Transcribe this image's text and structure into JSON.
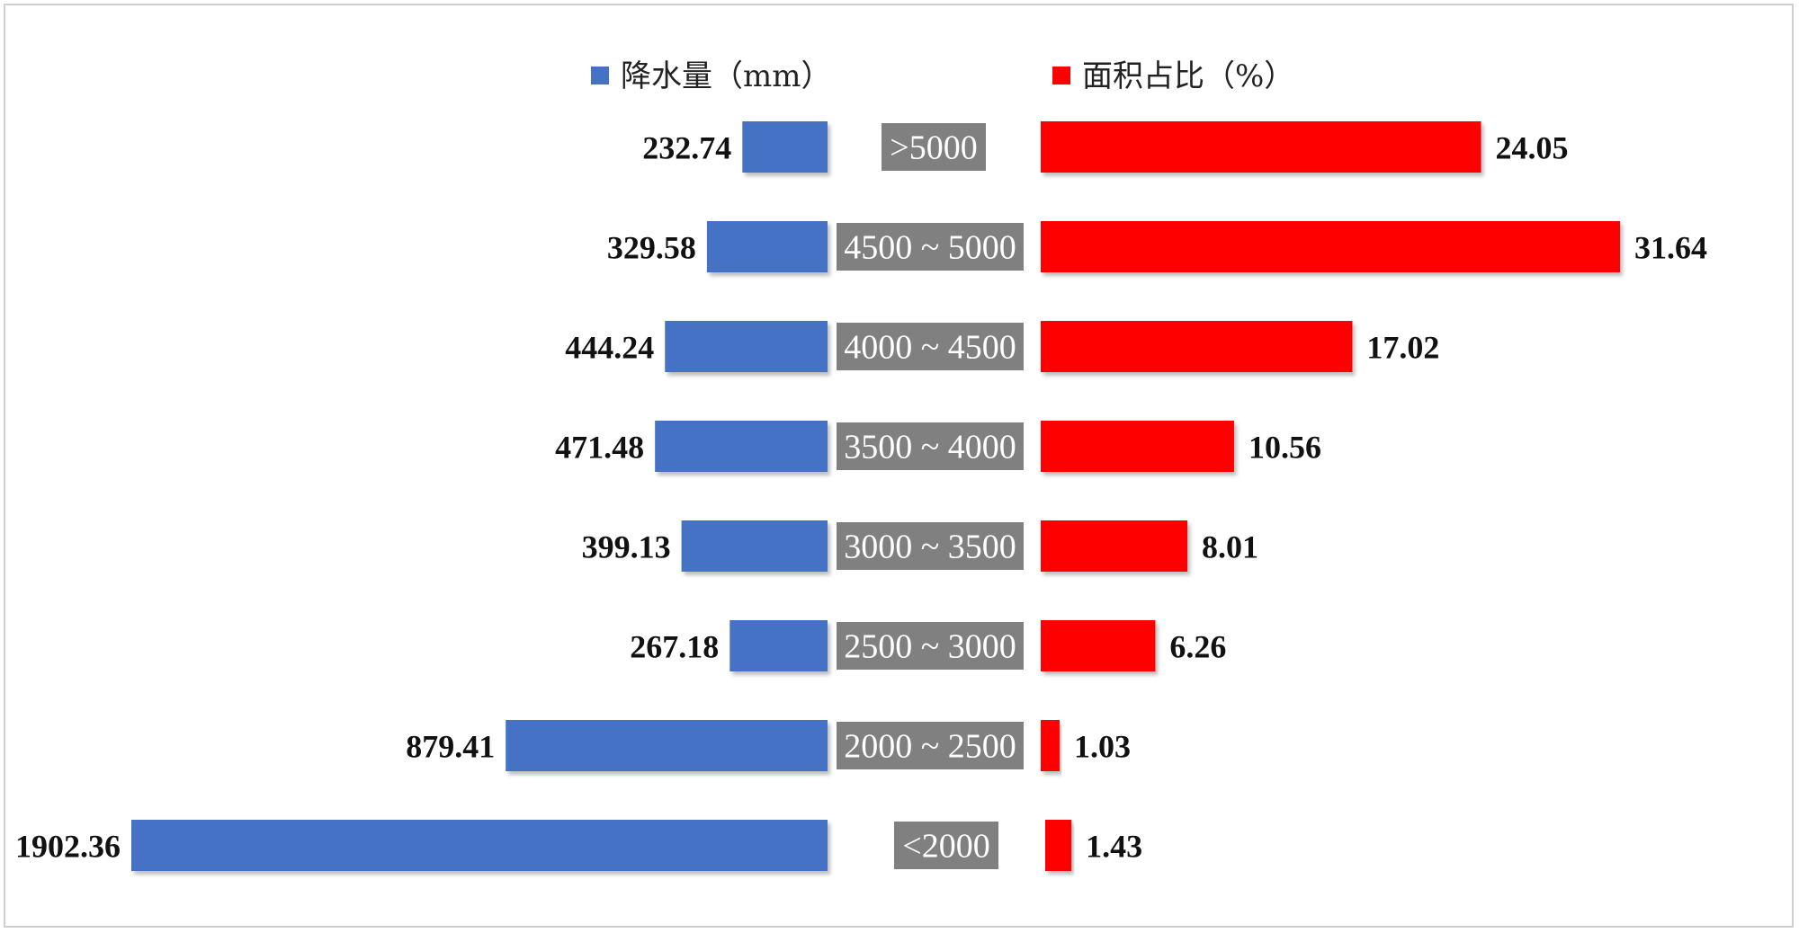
{
  "chart_data": {
    "type": "bar",
    "categories": [
      ">5000",
      "4500 ~ 5000",
      "4000 ~ 4500",
      "3500 ~ 4000",
      "3000 ~ 3500",
      "2500 ~ 3000",
      "2000 ~ 2500",
      "<2000"
    ],
    "series": [
      {
        "name": "降水量（mm）",
        "color": "#4472c4",
        "values": [
          232.74,
          329.58,
          444.24,
          471.48,
          399.13,
          267.18,
          879.41,
          1902.36
        ],
        "labels": [
          "232.74",
          "329.58",
          "444.24",
          "471.48",
          "399.13",
          "267.18",
          "879.41",
          "1902.36"
        ]
      },
      {
        "name": "面积占比（%）",
        "color": "#ff0000",
        "values": [
          24.05,
          31.64,
          17.02,
          10.56,
          8.01,
          6.26,
          1.03,
          1.43
        ],
        "labels": [
          "24.05",
          "31.64",
          "17.02",
          "10.56",
          "8.01",
          "6.26",
          "1.03",
          "1.43"
        ]
      }
    ],
    "category_box_color": "#808080",
    "orientation": "horizontal-butterfly",
    "legend_position": "top-center",
    "grid": false
  }
}
